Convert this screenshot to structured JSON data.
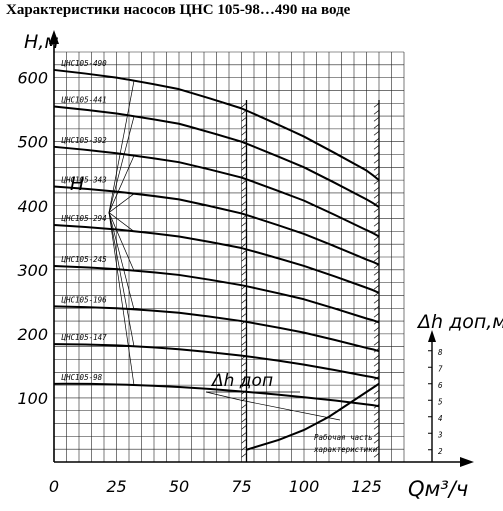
{
  "chart_data": {
    "type": "line",
    "title": "Характеристики насосов ЦНС 105-98…490 на воде",
    "xlabel": "Qм³/ч",
    "ylabel": "Н,м",
    "xlim": [
      0,
      140
    ],
    "ylim": [
      0,
      640
    ],
    "x_ticks": [
      0,
      25,
      50,
      75,
      100,
      125
    ],
    "y_ticks": [
      100,
      200,
      300,
      400,
      500,
      600
    ],
    "grid": true,
    "curve_label": "Н",
    "working_zone": [
      77,
      130
    ],
    "working_zone_label": [
      "Рабочая часть",
      "характеристики"
    ],
    "x": [
      0,
      25,
      50,
      75,
      100,
      125,
      130
    ],
    "series": [
      {
        "name": "ЦНС105-490",
        "values": [
          612,
          600,
          582,
          552,
          508,
          455,
          440
        ]
      },
      {
        "name": "ЦНС105-441",
        "values": [
          555,
          544,
          528,
          500,
          460,
          410,
          398
        ]
      },
      {
        "name": "ЦНС105-392",
        "values": [
          492,
          482,
          468,
          444,
          408,
          362,
          352
        ]
      },
      {
        "name": "ЦНС105-343",
        "values": [
          430,
          422,
          410,
          388,
          356,
          316,
          308
        ]
      },
      {
        "name": "ЦНС105-294",
        "values": [
          370,
          363,
          352,
          334,
          306,
          272,
          264
        ]
      },
      {
        "name": "ЦНС105-245",
        "values": [
          306,
          301,
          292,
          276,
          254,
          224,
          218
        ]
      },
      {
        "name": "ЦНС105-196",
        "values": [
          243,
          240,
          233,
          220,
          202,
          178,
          173
        ]
      },
      {
        "name": "ЦНС105-147",
        "values": [
          184,
          182,
          176,
          166,
          152,
          134,
          130
        ]
      },
      {
        "name": "ЦНС105-98",
        "values": [
          122,
          121,
          117,
          110,
          101,
          90,
          87
        ]
      }
    ],
    "npsh": {
      "label": "Δh доп",
      "axis_label": "Δh доп,м",
      "axis_ticks": [
        2,
        3,
        4,
        5,
        6,
        7,
        8
      ],
      "x": [
        77,
        90,
        100,
        110,
        120,
        130
      ],
      "values": [
        2.0,
        2.6,
        3.2,
        4.0,
        5.0,
        6.0
      ]
    }
  }
}
